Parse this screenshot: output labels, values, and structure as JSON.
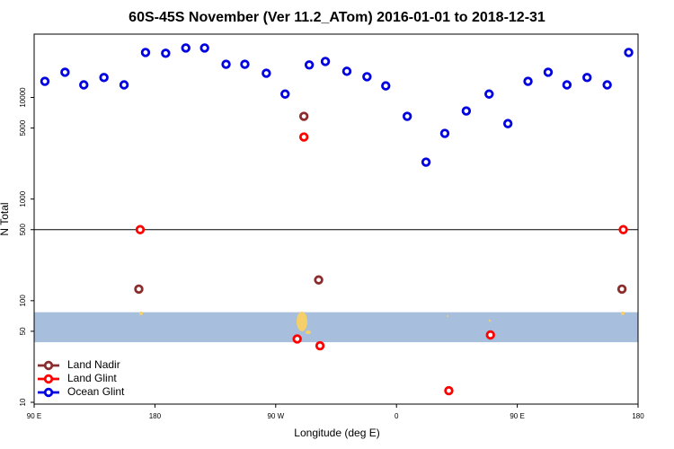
{
  "chart_data": {
    "type": "scatter",
    "title": "60S-45S November (Ver 11.2_ATom)   2016-01-01 to 2018-12-31",
    "x_label": "Longitude (deg E)",
    "y_label": "N Total",
    "xlim": [
      90,
      540
    ],
    "xticks": [
      {
        "value": 90,
        "label": "90 E"
      },
      {
        "value": 180,
        "label": "180"
      },
      {
        "value": 270,
        "label": "90 W"
      },
      {
        "value": 360,
        "label": "0"
      },
      {
        "value": 450,
        "label": "90 E"
      },
      {
        "value": 540,
        "label": "180"
      }
    ],
    "ylim": [
      9.6,
      42000
    ],
    "yticks": [
      10,
      50,
      100,
      500,
      1000,
      5000,
      10000
    ],
    "log_y": true,
    "hline": 500,
    "band": [
      39,
      77
    ],
    "band_color": "#a8bedd",
    "legend": "lower left",
    "series": [
      {
        "name": "Land Nadir",
        "color": "#8b2d2d",
        "x": [
          168,
          291,
          302,
          528
        ],
        "values": [
          130,
          6520,
          160,
          130
        ]
      },
      {
        "name": "Land Glint",
        "color": "#ff0000",
        "x": [
          169,
          291,
          286,
          303,
          399,
          430,
          529
        ],
        "values": [
          500,
          4080,
          42,
          36,
          13,
          46,
          500
        ]
      },
      {
        "name": "Ocean Glint",
        "color": "#0000e0",
        "x": [
          98,
          113,
          127,
          142,
          157,
          173,
          188,
          203,
          217,
          233,
          247,
          263,
          277,
          295,
          307,
          323,
          338,
          352,
          368,
          382,
          396,
          412,
          429,
          443,
          458,
          473,
          487,
          502,
          517,
          533
        ],
        "values": [
          14400,
          17700,
          13300,
          15700,
          13300,
          27700,
          27200,
          30700,
          30700,
          21200,
          21200,
          17300,
          10800,
          20900,
          22600,
          18100,
          16000,
          13000,
          6520,
          2310,
          4430,
          7360,
          10800,
          5530,
          14400,
          17700,
          13300,
          15700,
          13300,
          27700
        ]
      }
    ]
  }
}
